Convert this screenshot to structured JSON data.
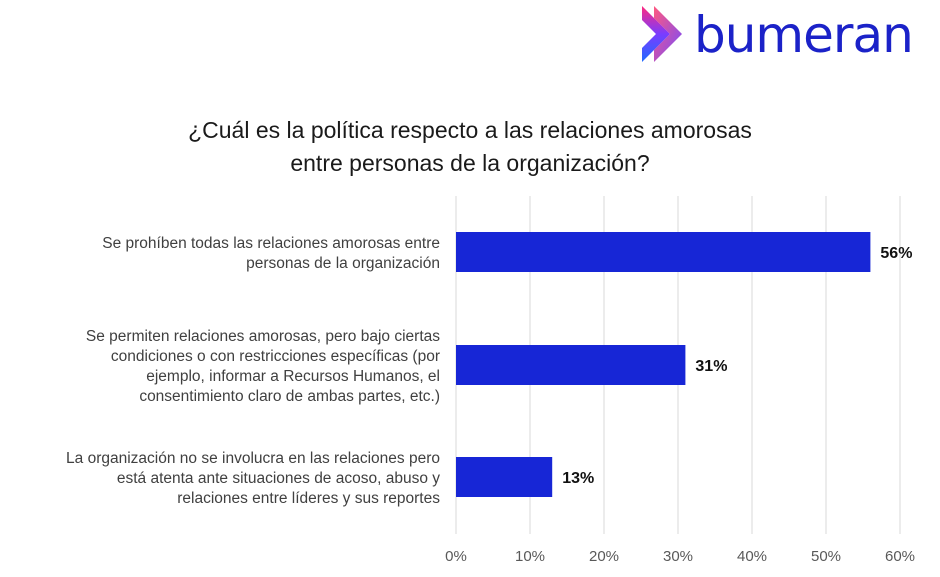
{
  "brand": {
    "name": "bumeran",
    "colors": {
      "wordmark": "#1b22c8",
      "icon_top": "#ff2a7f",
      "icon_mid": "#7a3cff",
      "icon_bottom": "#1f6bff"
    }
  },
  "chart_data": {
    "type": "bar",
    "orientation": "horizontal",
    "title_lines": [
      "¿Cuál es la política respecto a las relaciones amorosas",
      "entre personas de la organización?"
    ],
    "categories": [
      [
        "Se prohíben todas las relaciones amorosas entre",
        "personas de la organización"
      ],
      [
        "Se permiten relaciones amorosas, pero bajo ciertas",
        "condiciones o con restricciones específicas (por",
        "ejemplo, informar a Recursos Humanos, el",
        "consentimiento claro de ambas partes, etc.)"
      ],
      [
        "La organización no se involucra en las relaciones pero",
        "está atenta ante situaciones de acoso, abuso y",
        "relaciones entre líderes y sus reportes"
      ]
    ],
    "values": [
      56,
      31,
      13
    ],
    "value_labels": [
      "56%",
      "31%",
      "13%"
    ],
    "xlim": [
      0,
      60
    ],
    "xticks": [
      0,
      10,
      20,
      30,
      40,
      50,
      60
    ],
    "xtick_labels": [
      "0%",
      "10%",
      "20%",
      "30%",
      "40%",
      "50%",
      "60%"
    ],
    "xlabel": "",
    "ylabel": "",
    "grid": "vertical",
    "bar_color": "#1726d6",
    "legend": "none"
  }
}
